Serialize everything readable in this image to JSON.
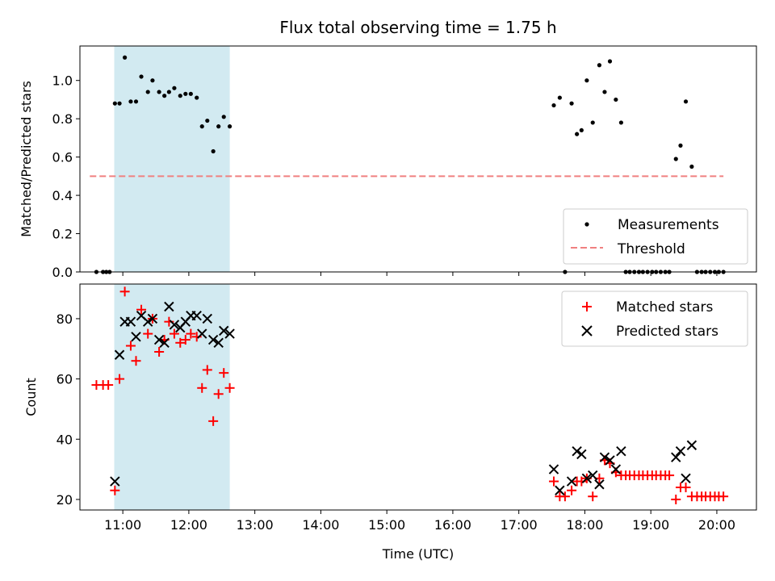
{
  "chart_data": [
    {
      "type": "scatter",
      "title": "Flux total observing time = 1.75 h",
      "ylabel": "Matched/Predicted stars",
      "xlabel": "",
      "xlim": [
        10.35,
        20.6
      ],
      "ylim": [
        0.0,
        1.18
      ],
      "x_ticks": [
        11,
        12,
        13,
        14,
        15,
        16,
        17,
        18,
        19,
        20
      ],
      "y_ticks": [
        0.0,
        0.2,
        0.4,
        0.6,
        0.8,
        1.0
      ],
      "y_tick_labels": [
        "0.0",
        "0.2",
        "0.4",
        "0.6",
        "0.8",
        "1.0"
      ],
      "shaded_region": {
        "x": [
          10.87,
          12.62
        ],
        "color": "#add8e6"
      },
      "legend": {
        "placement": "lower-right",
        "entries": [
          "Measurements",
          "Threshold"
        ]
      },
      "threshold": {
        "name": "Threshold",
        "y": 0.5,
        "x": [
          10.5,
          20.1
        ],
        "color": "#f08080"
      },
      "measurements": {
        "name": "Measurements",
        "color": "#000000",
        "x": [
          10.6,
          10.7,
          10.75,
          10.8,
          10.88,
          10.95,
          11.03,
          11.12,
          11.2,
          11.28,
          11.38,
          11.45,
          11.55,
          11.63,
          11.7,
          11.78,
          11.87,
          11.95,
          12.03,
          12.12,
          12.2,
          12.28,
          12.37,
          12.45,
          12.53,
          12.62,
          17.53,
          17.62,
          17.7,
          17.8,
          17.88,
          17.95,
          18.03,
          18.12,
          18.22,
          18.3,
          18.38,
          18.47,
          18.55,
          18.62,
          18.68,
          18.75,
          18.82,
          18.88,
          18.95,
          19.02,
          19.08,
          19.15,
          19.22,
          19.28,
          19.38,
          19.45,
          19.53,
          19.62,
          19.7,
          19.77,
          19.83,
          19.9,
          19.97,
          20.03,
          20.1
        ],
        "y": [
          0.0,
          0.0,
          0.0,
          0.0,
          0.88,
          0.88,
          1.12,
          0.89,
          0.89,
          1.02,
          0.94,
          1.0,
          0.94,
          0.92,
          0.94,
          0.96,
          0.92,
          0.93,
          0.93,
          0.91,
          0.76,
          0.79,
          0.63,
          0.76,
          0.81,
          0.76,
          0.87,
          0.91,
          0.0,
          0.88,
          0.72,
          0.74,
          1.0,
          0.78,
          1.08,
          0.94,
          1.1,
          0.9,
          0.78,
          0.0,
          0.0,
          0.0,
          0.0,
          0.0,
          0.0,
          0.0,
          0.0,
          0.0,
          0.0,
          0.0,
          0.59,
          0.66,
          0.89,
          0.55,
          0.0,
          0.0,
          0.0,
          0.0,
          0.0,
          0.0,
          0.0
        ]
      }
    },
    {
      "type": "scatter",
      "title": "",
      "xlabel": "Time (UTC)",
      "ylabel": "Count",
      "xlim": [
        10.35,
        20.6
      ],
      "ylim": [
        16.5,
        91.5
      ],
      "x_ticks": [
        11,
        12,
        13,
        14,
        15,
        16,
        17,
        18,
        19,
        20
      ],
      "x_tick_labels": [
        "11:00",
        "12:00",
        "13:00",
        "14:00",
        "15:00",
        "16:00",
        "17:00",
        "18:00",
        "19:00",
        "20:00"
      ],
      "y_ticks": [
        20,
        40,
        60,
        80
      ],
      "y_tick_labels": [
        "20",
        "40",
        "60",
        "80"
      ],
      "shaded_region": {
        "x": [
          10.87,
          12.62
        ],
        "color": "#add8e6"
      },
      "legend": {
        "placement": "upper-right",
        "entries": [
          "Matched stars",
          "Predicted stars"
        ]
      },
      "series": [
        {
          "name": "Matched stars",
          "marker": "+",
          "color": "#ff0000",
          "x": [
            10.6,
            10.7,
            10.78,
            10.88,
            10.95,
            11.03,
            11.12,
            11.2,
            11.28,
            11.38,
            11.45,
            11.55,
            11.63,
            11.7,
            11.78,
            11.87,
            11.95,
            12.03,
            12.12,
            12.2,
            12.28,
            12.37,
            12.45,
            12.53,
            12.62,
            17.53,
            17.62,
            17.7,
            17.8,
            17.88,
            17.95,
            18.03,
            18.12,
            18.22,
            18.3,
            18.38,
            18.47,
            18.55,
            18.62,
            18.68,
            18.75,
            18.82,
            18.88,
            18.95,
            19.02,
            19.08,
            19.15,
            19.22,
            19.28,
            19.38,
            19.45,
            19.53,
            19.62,
            19.7,
            19.77,
            19.83,
            19.9,
            19.97,
            20.03,
            20.1
          ],
          "y": [
            58,
            58,
            58,
            23,
            60,
            89,
            71,
            66,
            83,
            75,
            80,
            69,
            73,
            79,
            75,
            72,
            73,
            75,
            74,
            57,
            63,
            46,
            55,
            62,
            57,
            26,
            21,
            21,
            23,
            26,
            26,
            27,
            21,
            27,
            33,
            32,
            29,
            28,
            28,
            28,
            28,
            28,
            28,
            28,
            28,
            28,
            28,
            28,
            28,
            20,
            24,
            24,
            21,
            21,
            21,
            21,
            21,
            21,
            21,
            21
          ]
        },
        {
          "name": "Predicted stars",
          "marker": "x",
          "color": "#000000",
          "x": [
            10.88,
            10.95,
            11.03,
            11.12,
            11.2,
            11.28,
            11.38,
            11.45,
            11.55,
            11.63,
            11.7,
            11.78,
            11.87,
            11.95,
            12.03,
            12.12,
            12.2,
            12.28,
            12.37,
            12.45,
            12.53,
            12.62,
            17.53,
            17.62,
            17.8,
            17.88,
            17.95,
            18.03,
            18.12,
            18.22,
            18.3,
            18.38,
            18.47,
            18.55,
            19.38,
            19.45,
            19.53,
            19.62
          ],
          "y": [
            26,
            68,
            79,
            79,
            74,
            81,
            79,
            80,
            73,
            72,
            84,
            78,
            77,
            79,
            81,
            81,
            75,
            80,
            73,
            72,
            76,
            75,
            30,
            23,
            26,
            36,
            35,
            27,
            28,
            25,
            34,
            33,
            30,
            36,
            34,
            36,
            27,
            38
          ]
        }
      ]
    }
  ]
}
